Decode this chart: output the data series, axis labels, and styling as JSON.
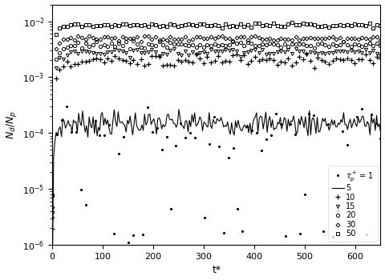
{
  "xlabel": "t*",
  "ylabel": "$N_d/N_p$",
  "xlim": [
    0,
    650
  ],
  "ylim": [
    1e-06,
    0.02
  ],
  "figsize": [
    4.8,
    3.5
  ],
  "dpi": 100,
  "series": [
    {
      "tau": 1,
      "style": ".",
      "marker": ".",
      "level": 0.00012,
      "noise": 0.6,
      "rise": 5,
      "ms": 2.5
    },
    {
      "tau": 5,
      "style": "line",
      "marker": "-",
      "level": 0.00015,
      "noise": 0.25,
      "rise": 8,
      "ms": 1.0
    },
    {
      "tau": 10,
      "style": "+",
      "marker": "+",
      "level": 0.002,
      "noise": 0.12,
      "rise": 12,
      "ms": 4
    },
    {
      "tau": 15,
      "style": "v",
      "marker": "v",
      "level": 0.0028,
      "noise": 0.07,
      "rise": 10,
      "ms": 3
    },
    {
      "tau": 20,
      "style": "o",
      "marker": "o",
      "level": 0.0038,
      "noise": 0.06,
      "rise": 10,
      "ms": 3
    },
    {
      "tau": 30,
      "style": "D",
      "marker": "D",
      "level": 0.005,
      "noise": 0.05,
      "rise": 8,
      "ms": 3
    },
    {
      "tau": 50,
      "style": "s",
      "marker": "s",
      "level": 0.0085,
      "noise": 0.04,
      "rise": 6,
      "ms": 3
    }
  ],
  "seeds": [
    42,
    7,
    15,
    20,
    25,
    30,
    35
  ],
  "n_points": [
    70,
    250,
    90,
    90,
    90,
    90,
    90
  ]
}
